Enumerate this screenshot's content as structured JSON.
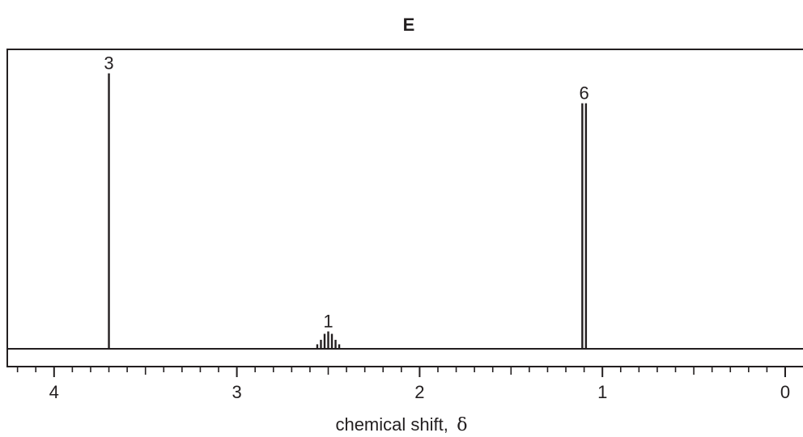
{
  "chart_data": {
    "type": "line",
    "title": "E",
    "xlabel": "chemical shift,",
    "xlabel_symbol": "δ",
    "ylabel": "",
    "x_reversed": true,
    "xlim": [
      4.3,
      0.0
    ],
    "x_major_ticks": [
      4,
      3,
      2,
      1,
      0
    ],
    "x_minor_step": 0.1,
    "x_tick_labels": [
      "4",
      "3",
      "2",
      "1",
      "0"
    ],
    "y_units": "relative intensity",
    "ylim": [
      0,
      1
    ],
    "grid": false,
    "legend": "none",
    "peaks": [
      {
        "label": "3",
        "multiplicity": "singlet",
        "lines": [
          {
            "x": 3.7,
            "y": 0.92
          }
        ]
      },
      {
        "label": "1",
        "multiplicity": "septet",
        "lines": [
          {
            "x": 2.56,
            "y": 0.015
          },
          {
            "x": 2.54,
            "y": 0.03
          },
          {
            "x": 2.52,
            "y": 0.05
          },
          {
            "x": 2.5,
            "y": 0.058
          },
          {
            "x": 2.48,
            "y": 0.05
          },
          {
            "x": 2.46,
            "y": 0.03
          },
          {
            "x": 2.44,
            "y": 0.015
          }
        ]
      },
      {
        "label": "6",
        "multiplicity": "doublet",
        "lines": [
          {
            "x": 1.11,
            "y": 0.82
          },
          {
            "x": 1.09,
            "y": 0.82
          }
        ]
      }
    ]
  },
  "colors": {
    "ink": "#231f20",
    "background": "#ffffff"
  }
}
